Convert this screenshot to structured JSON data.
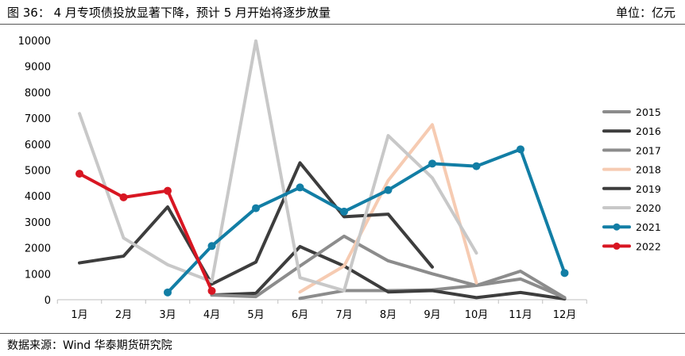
{
  "header": {
    "title": "图 36：  4 月专项债投放显著下降，预计 5 月开始将逐步放量",
    "unit": "单位：亿元"
  },
  "footer": {
    "source": "数据来源：Wind   华泰期货研究院"
  },
  "chart_data": {
    "type": "line",
    "categories": [
      "1月",
      "2月",
      "3月",
      "4月",
      "5月",
      "6月",
      "7月",
      "8月",
      "9月",
      "10月",
      "11月",
      "12月"
    ],
    "ylim": [
      0,
      10000
    ],
    "yticks": [
      0,
      1000,
      2000,
      3000,
      4000,
      5000,
      6000,
      7000,
      8000,
      9000,
      10000
    ],
    "grid": false,
    "legend_position": "right",
    "series": [
      {
        "name": "2015",
        "color": "#8c8c8c",
        "markers": false,
        "values": [
          null,
          null,
          null,
          null,
          null,
          50,
          350,
          350,
          380,
          550,
          1100,
          80
        ]
      },
      {
        "name": "2016",
        "color": "#3d3d3d",
        "markers": false,
        "values": [
          null,
          null,
          null,
          180,
          250,
          2050,
          1300,
          300,
          350,
          80,
          280,
          30
        ]
      },
      {
        "name": "2017",
        "color": "#8c8c8c",
        "markers": false,
        "values": [
          null,
          null,
          null,
          180,
          120,
          1300,
          2450,
          1500,
          1000,
          550,
          800,
          80
        ]
      },
      {
        "name": "2018",
        "color": "#f6cbb2",
        "markers": false,
        "values": [
          null,
          null,
          null,
          null,
          null,
          300,
          1300,
          4600,
          6750,
          650,
          null,
          null
        ]
      },
      {
        "name": "2019",
        "color": "#3d3d3d",
        "markers": false,
        "values": [
          1420,
          1680,
          3580,
          600,
          1450,
          5280,
          3200,
          3300,
          1260,
          null,
          null,
          null
        ]
      },
      {
        "name": "2020",
        "color": "#c8c8c8",
        "markers": false,
        "values": [
          7180,
          2380,
          1350,
          700,
          9980,
          850,
          350,
          6330,
          4700,
          1800,
          null,
          null
        ]
      },
      {
        "name": "2021",
        "color": "#127ea5",
        "markers": true,
        "values": [
          null,
          null,
          280,
          2070,
          3530,
          4330,
          3400,
          4230,
          5250,
          5150,
          5800,
          1030
        ]
      },
      {
        "name": "2022",
        "color": "#d81622",
        "markers": true,
        "values": [
          4860,
          3950,
          4200,
          340,
          null,
          null,
          null,
          null,
          null,
          null,
          null,
          null
        ]
      }
    ]
  }
}
